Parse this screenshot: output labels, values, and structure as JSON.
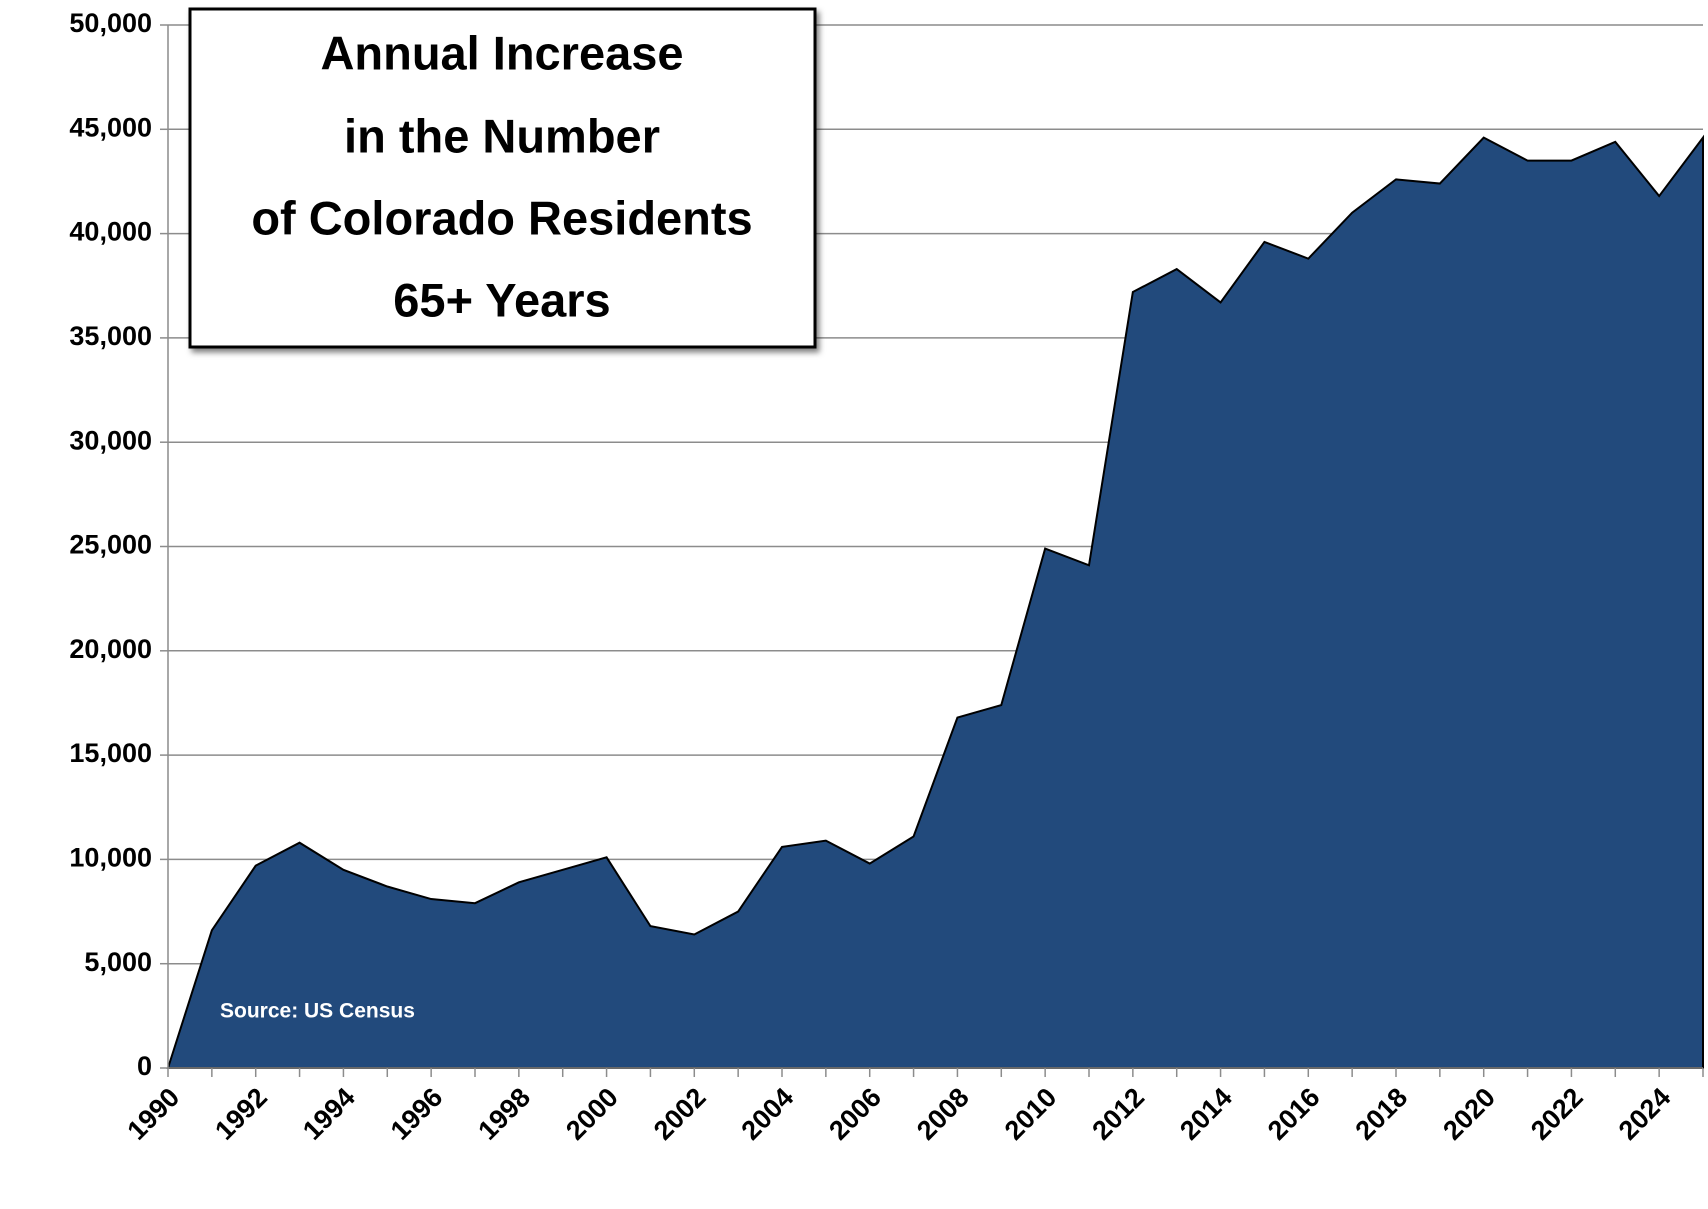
{
  "chart_data": {
    "type": "area",
    "title": [
      "Annual Increase",
      "in the Number",
      "of Colorado Residents",
      "65+ Years"
    ],
    "annotation": "Source: US Census",
    "x": [
      1990,
      1991,
      1992,
      1993,
      1994,
      1995,
      1996,
      1997,
      1998,
      1999,
      2000,
      2001,
      2002,
      2003,
      2004,
      2005,
      2006,
      2007,
      2008,
      2009,
      2010,
      2011,
      2012,
      2013,
      2014,
      2015,
      2016,
      2017,
      2018,
      2019,
      2020,
      2021,
      2022,
      2023,
      2024,
      2025
    ],
    "values": [
      0,
      6600,
      9700,
      10800,
      9500,
      8700,
      8100,
      7900,
      8900,
      9500,
      10100,
      6800,
      6400,
      7500,
      10600,
      10900,
      9800,
      11100,
      16800,
      17400,
      24900,
      24100,
      37200,
      38300,
      36700,
      39600,
      38800,
      41000,
      42600,
      42400,
      44600,
      43500,
      43500,
      44400,
      41800,
      44600
    ],
    "color": "#224a7c",
    "xlim": [
      1990,
      2025
    ],
    "xticks": [
      1990,
      1992,
      1994,
      1996,
      1998,
      2000,
      2002,
      2004,
      2006,
      2008,
      2010,
      2012,
      2014,
      2016,
      2018,
      2020,
      2022,
      2024
    ],
    "ylim": [
      0,
      50000
    ],
    "yticks": [
      0,
      {
        "value": 5000,
        "label": "5,000"
      },
      {
        "value": 10000,
        "label": "10,000"
      },
      {
        "value": 15000,
        "label": "15,000"
      },
      {
        "value": 20000,
        "label": "20,000"
      },
      {
        "value": 25000,
        "label": "25,000"
      },
      {
        "value": 30000,
        "label": "30,000"
      },
      {
        "value": 35000,
        "label": "35,000"
      },
      {
        "value": 40000,
        "label": "40,000"
      },
      {
        "value": 45000,
        "label": "45,000"
      },
      {
        "value": 50000,
        "label": "50,000"
      }
    ],
    "grid": true
  }
}
